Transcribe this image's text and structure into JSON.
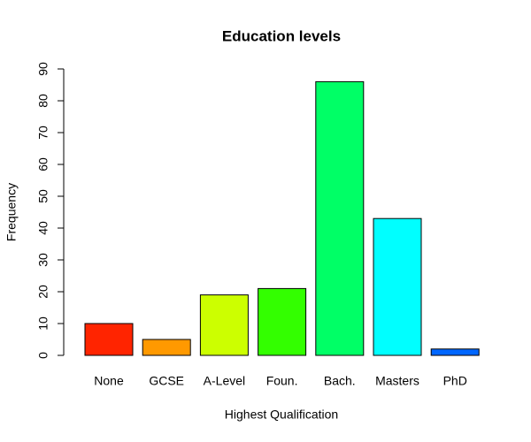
{
  "chart_data": {
    "type": "bar",
    "title": "Education levels",
    "x_label": "Highest Qualification",
    "y_label": "Frequency",
    "categories": [
      "None",
      "GCSE",
      "A-Level",
      "Foun.",
      "Bach.",
      "Masters",
      "PhD"
    ],
    "values": [
      10,
      5,
      19,
      21,
      86,
      43,
      2
    ],
    "colors": [
      "#FF2400",
      "#FF9900",
      "#CCFF00",
      "#33FF00",
      "#00FF66",
      "#00FFFF",
      "#0066FF"
    ],
    "ylim": [
      0,
      90
    ],
    "yticks": [
      0,
      10,
      20,
      30,
      40,
      50,
      60,
      70,
      80,
      90
    ],
    "grid": false
  }
}
